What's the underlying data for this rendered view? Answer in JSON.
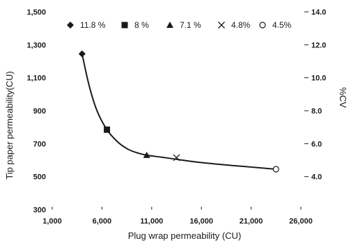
{
  "chart_data": {
    "type": "scatter",
    "title": "",
    "xlabel": "Plug wrap permeability (CU)",
    "ylabel": "Tip paper permeability(CU)",
    "y2label": "%CV",
    "xlim": [
      1000,
      26000
    ],
    "ylim": [
      300,
      1500
    ],
    "y2lim": [
      2.0,
      14.0
    ],
    "xticks": [
      1000,
      6000,
      11000,
      16000,
      21000,
      26000
    ],
    "xtick_labels": [
      "1,000",
      "6,000",
      "11,000",
      "16,000",
      "21,000",
      "26,000"
    ],
    "yticks": [
      300,
      500,
      700,
      900,
      1100,
      1300,
      1500
    ],
    "ytick_labels": [
      "300",
      "500",
      "700",
      "900",
      "1,100",
      "1,300",
      "1,500"
    ],
    "y2ticks": [
      4.0,
      6.0,
      8.0,
      10.0,
      12.0,
      14.0
    ],
    "y2tick_labels": [
      "4.0",
      "6.0",
      "8.0",
      "10.0",
      "12.0",
      "14.0"
    ],
    "grid": false,
    "legend_position": "top",
    "series": [
      {
        "name": "11.8 %",
        "marker": "diamond",
        "x": [
          4000
        ],
        "y": [
          1245
        ]
      },
      {
        "name": "8 %",
        "marker": "square",
        "x": [
          6500
        ],
        "y": [
          785
        ]
      },
      {
        "name": "7.1 %",
        "marker": "triangle",
        "x": [
          10500
        ],
        "y": [
          630
        ]
      },
      {
        "name": "4.8%",
        "marker": "cross",
        "x": [
          13500
        ],
        "y": [
          615
        ]
      },
      {
        "name": "4.5%",
        "marker": "circle",
        "x": [
          23500
        ],
        "y": [
          545
        ]
      }
    ],
    "fit_curve": {
      "x": [
        4000,
        4700,
        5500,
        6500,
        7500,
        8500,
        9500,
        10500,
        12000,
        13500,
        16000,
        19000,
        21000,
        23500
      ],
      "y": [
        1245,
        1055,
        900,
        785,
        715,
        670,
        645,
        630,
        618,
        605,
        585,
        568,
        558,
        545
      ]
    },
    "colors": {
      "ink": "#1a1a1a",
      "background": "#ffffff"
    }
  }
}
